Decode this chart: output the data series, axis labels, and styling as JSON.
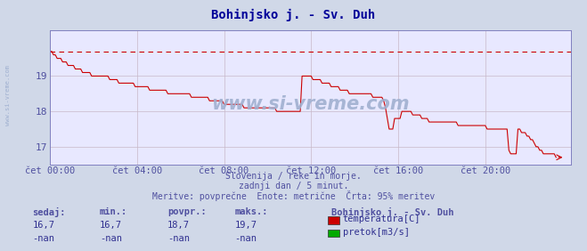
{
  "title": "Bohinjsko j. - Sv. Duh",
  "title_color": "#000099",
  "bg_color": "#d0d8e8",
  "plot_bg_color": "#e8e8ff",
  "grid_color": "#c8b8c8",
  "tick_color": "#5050a0",
  "info_color": "#5050a0",
  "xticklabels": [
    "čet 00:00",
    "čet 04:00",
    "čet 08:00",
    "čet 12:00",
    "čet 16:00",
    "čet 20:00"
  ],
  "xtick_positions": [
    0,
    48,
    96,
    144,
    192,
    240
  ],
  "ytick_positions": [
    17,
    18,
    19
  ],
  "ylim": [
    16.5,
    20.3
  ],
  "xlim": [
    0,
    287
  ],
  "line_color": "#cc0000",
  "dashed_line_color": "#cc0000",
  "dashed_line_value": 19.7,
  "watermark": "www.si-vreme.com",
  "watermark_color": "#a0b0d0",
  "sidebar_text": "www.si-vreme.com",
  "text_info_1": "Slovenija / reke in morje.",
  "text_info_2": "zadnji dan / 5 minut.",
  "text_info_3": "Meritve: povprečne  Enote: metrične  Črta: 95% meritev",
  "legend_title": "Bohinjsko j. - Sv. Duh",
  "legend_items": [
    {
      "label": "temperatura[C]",
      "color": "#cc0000"
    },
    {
      "label": "pretok[m3/s]",
      "color": "#00aa00"
    }
  ],
  "stats_headers": [
    "sedaj:",
    "min.:",
    "povpr.:",
    "maks.:"
  ],
  "stats_temp": [
    "16,7",
    "16,7",
    "18,7",
    "19,7"
  ],
  "stats_flow": [
    "-nan",
    "-nan",
    "-nan",
    "-nan"
  ],
  "temp_data": [
    19.7,
    19.7,
    19.6,
    19.6,
    19.5,
    19.5,
    19.5,
    19.4,
    19.4,
    19.4,
    19.3,
    19.3,
    19.3,
    19.3,
    19.2,
    19.2,
    19.2,
    19.2,
    19.1,
    19.1,
    19.1,
    19.1,
    19.1,
    19.0,
    19.0,
    19.0,
    19.0,
    19.0,
    19.0,
    19.0,
    19.0,
    19.0,
    19.0,
    18.9,
    18.9,
    18.9,
    18.9,
    18.9,
    18.8,
    18.8,
    18.8,
    18.8,
    18.8,
    18.8,
    18.8,
    18.8,
    18.8,
    18.7,
    18.7,
    18.7,
    18.7,
    18.7,
    18.7,
    18.7,
    18.7,
    18.6,
    18.6,
    18.6,
    18.6,
    18.6,
    18.6,
    18.6,
    18.6,
    18.6,
    18.6,
    18.5,
    18.5,
    18.5,
    18.5,
    18.5,
    18.5,
    18.5,
    18.5,
    18.5,
    18.5,
    18.5,
    18.5,
    18.5,
    18.4,
    18.4,
    18.4,
    18.4,
    18.4,
    18.4,
    18.4,
    18.4,
    18.4,
    18.4,
    18.3,
    18.3,
    18.3,
    18.3,
    18.3,
    18.3,
    18.3,
    18.3,
    18.2,
    18.2,
    18.2,
    18.2,
    18.2,
    18.2,
    18.2,
    18.2,
    18.2,
    18.2,
    18.2,
    18.1,
    18.1,
    18.1,
    18.1,
    18.1,
    18.1,
    18.1,
    18.1,
    18.1,
    18.1,
    18.1,
    18.1,
    18.1,
    18.1,
    18.1,
    18.1,
    18.1,
    18.1,
    18.0,
    18.0,
    18.0,
    18.0,
    18.0,
    18.0,
    18.0,
    18.0,
    18.0,
    18.0,
    18.0,
    18.0,
    18.0,
    18.0,
    19.0,
    19.0,
    19.0,
    19.0,
    19.0,
    19.0,
    18.9,
    18.9,
    18.9,
    18.9,
    18.9,
    18.8,
    18.8,
    18.8,
    18.8,
    18.8,
    18.7,
    18.7,
    18.7,
    18.7,
    18.7,
    18.6,
    18.6,
    18.6,
    18.6,
    18.6,
    18.5,
    18.5,
    18.5,
    18.5,
    18.5,
    18.5,
    18.5,
    18.5,
    18.5,
    18.5,
    18.5,
    18.5,
    18.5,
    18.4,
    18.4,
    18.4,
    18.4,
    18.4,
    18.4,
    18.3,
    18.1,
    17.8,
    17.5,
    17.5,
    17.5,
    17.8,
    17.8,
    17.8,
    17.8,
    18.0,
    18.0,
    18.0,
    18.0,
    18.0,
    18.0,
    17.9,
    17.9,
    17.9,
    17.9,
    17.9,
    17.8,
    17.8,
    17.8,
    17.8,
    17.7,
    17.7,
    17.7,
    17.7,
    17.7,
    17.7,
    17.7,
    17.7,
    17.7,
    17.7,
    17.7,
    17.7,
    17.7,
    17.7,
    17.7,
    17.7,
    17.6,
    17.6,
    17.6,
    17.6,
    17.6,
    17.6,
    17.6,
    17.6,
    17.6,
    17.6,
    17.6,
    17.6,
    17.6,
    17.6,
    17.6,
    17.6,
    17.5,
    17.5,
    17.5,
    17.5,
    17.5,
    17.5,
    17.5,
    17.5,
    17.5,
    17.5,
    17.5,
    17.5,
    16.9,
    16.8,
    16.8,
    16.8,
    16.8,
    17.5,
    17.5,
    17.4,
    17.4,
    17.4,
    17.3,
    17.3,
    17.2,
    17.2,
    17.1,
    17.0,
    17.0,
    16.9,
    16.9,
    16.8,
    16.8,
    16.8,
    16.8,
    16.8,
    16.8,
    16.8,
    16.7
  ]
}
